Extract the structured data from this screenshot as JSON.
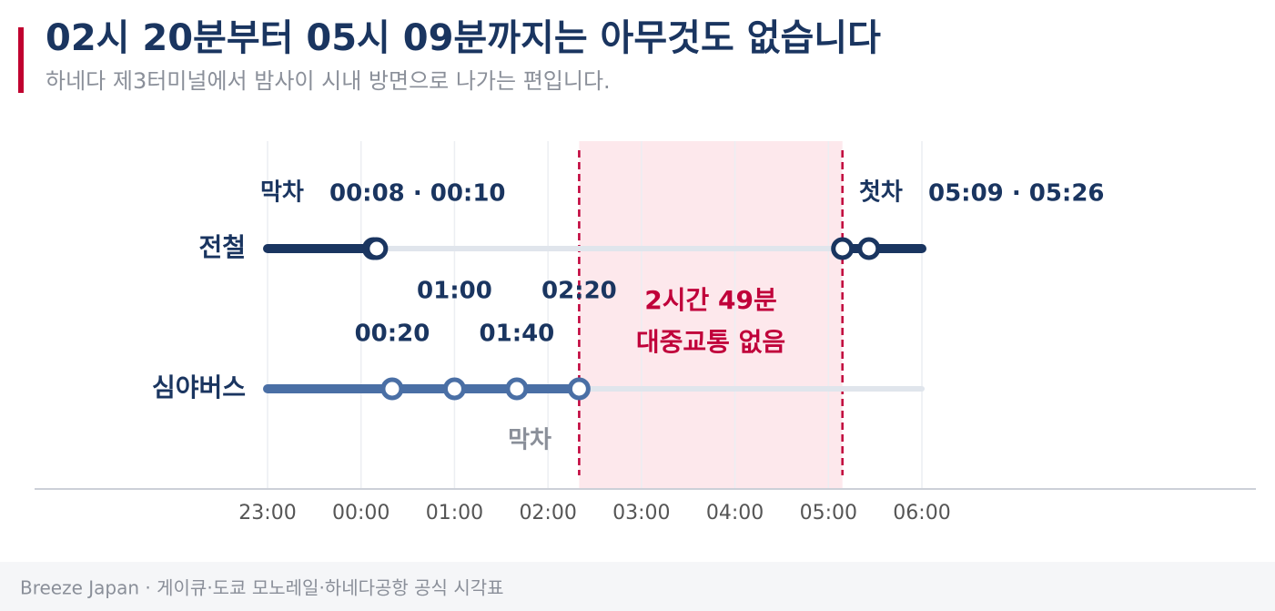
{
  "chart_data": {
    "type": "timeline",
    "title": "02시 20분부터 05시 09분까지는 아무것도 없습니다",
    "subtitle": "하네다 제3터미널에서 밤사이 시내 방면으로 나가는 편입니다.",
    "source": "Breeze Japan · 게이큐·도쿄 모노레일·하네다공항 공식 시각표",
    "xlim": [
      -1,
      6
    ],
    "xticks": [
      {
        "value": -1,
        "label": "23:00"
      },
      {
        "value": 0,
        "label": "00:00"
      },
      {
        "value": 1,
        "label": "01:00"
      },
      {
        "value": 2,
        "label": "02:00"
      },
      {
        "value": 3,
        "label": "03:00"
      },
      {
        "value": 4,
        "label": "04:00"
      },
      {
        "value": 5,
        "label": "05:00"
      },
      {
        "value": 6,
        "label": "06:00"
      }
    ],
    "grid": true,
    "series": [
      {
        "name": "전철",
        "color": "#1a3560",
        "x": [
          0.1333,
          0.1667,
          5.15,
          5.4333
        ],
        "service": [
          [
            -1,
            0.1667
          ],
          [
            5.15,
            6
          ]
        ],
        "last_label": "막차",
        "last_times": "00:08 · 00:10",
        "first_label": "첫차",
        "first_times": "05:09 · 05:26"
      },
      {
        "name": "심야버스",
        "color": "#4a6fa5",
        "x": [
          0.3333,
          1,
          1.6667,
          2.3333
        ],
        "value_labels": [
          "00:20",
          "01:00",
          "01:40",
          "02:20"
        ],
        "service": [
          [
            -1,
            2.3333
          ]
        ],
        "last_label": "막차"
      }
    ],
    "gap": {
      "start": 2.3333,
      "end": 5.15,
      "label": "2시간 49분",
      "sublabel": "대중교통 없음",
      "color": "#c0003a"
    }
  }
}
